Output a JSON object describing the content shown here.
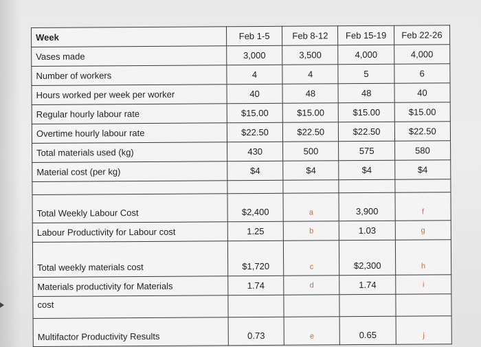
{
  "header": {
    "week_label": "Week",
    "cols": [
      "Feb 1-5",
      "Feb 8-12",
      "Feb 15-19",
      "Feb 22-26"
    ]
  },
  "rows": {
    "vases": {
      "label": "Vases made",
      "vals": [
        "3,000",
        "3,500",
        "4,000",
        "4,000"
      ]
    },
    "workers": {
      "label": "Number of workers",
      "vals": [
        "4",
        "4",
        "5",
        "6"
      ]
    },
    "hours": {
      "label": "Hours worked per week per worker",
      "vals": [
        "40",
        "48",
        "48",
        "40"
      ]
    },
    "regular": {
      "label": "Regular hourly labour rate",
      "vals": [
        "$15.00",
        "$15.00",
        "$15.00",
        "$15.00"
      ]
    },
    "overtime": {
      "label": "Overtime hourly labour rate",
      "vals": [
        "$22.50",
        "$22.50",
        "$22.50",
        "$22.50"
      ]
    },
    "materials": {
      "label": "Total materials used (kg)",
      "vals": [
        "430",
        "500",
        "575",
        "580"
      ]
    },
    "matcost": {
      "label": "Material cost (per kg)",
      "vals": [
        "$4",
        "$4",
        "$4",
        "$4"
      ]
    }
  },
  "labour": {
    "cost_label": "Total Weekly Labour Cost",
    "cost_vals": [
      "$2,400",
      "a",
      "3,900",
      "f"
    ],
    "prod_label": "Labour Productivity for Labour cost",
    "prod_vals": [
      "1.25",
      "b",
      "1.03",
      "g"
    ]
  },
  "materials_block": {
    "cost_label": "Total weekly materials cost",
    "cost_vals": [
      "$1,720",
      "c",
      "$2,300",
      "h"
    ],
    "prod_label": "Materials productivity for Materials",
    "prod_vals": [
      "1.74",
      "d",
      "1.74",
      "i"
    ],
    "prod_label_cont": "cost"
  },
  "multifactor": {
    "label": "Multifactor Productivity Results",
    "vals": [
      "0.73",
      "e",
      "0.65",
      "j"
    ]
  }
}
